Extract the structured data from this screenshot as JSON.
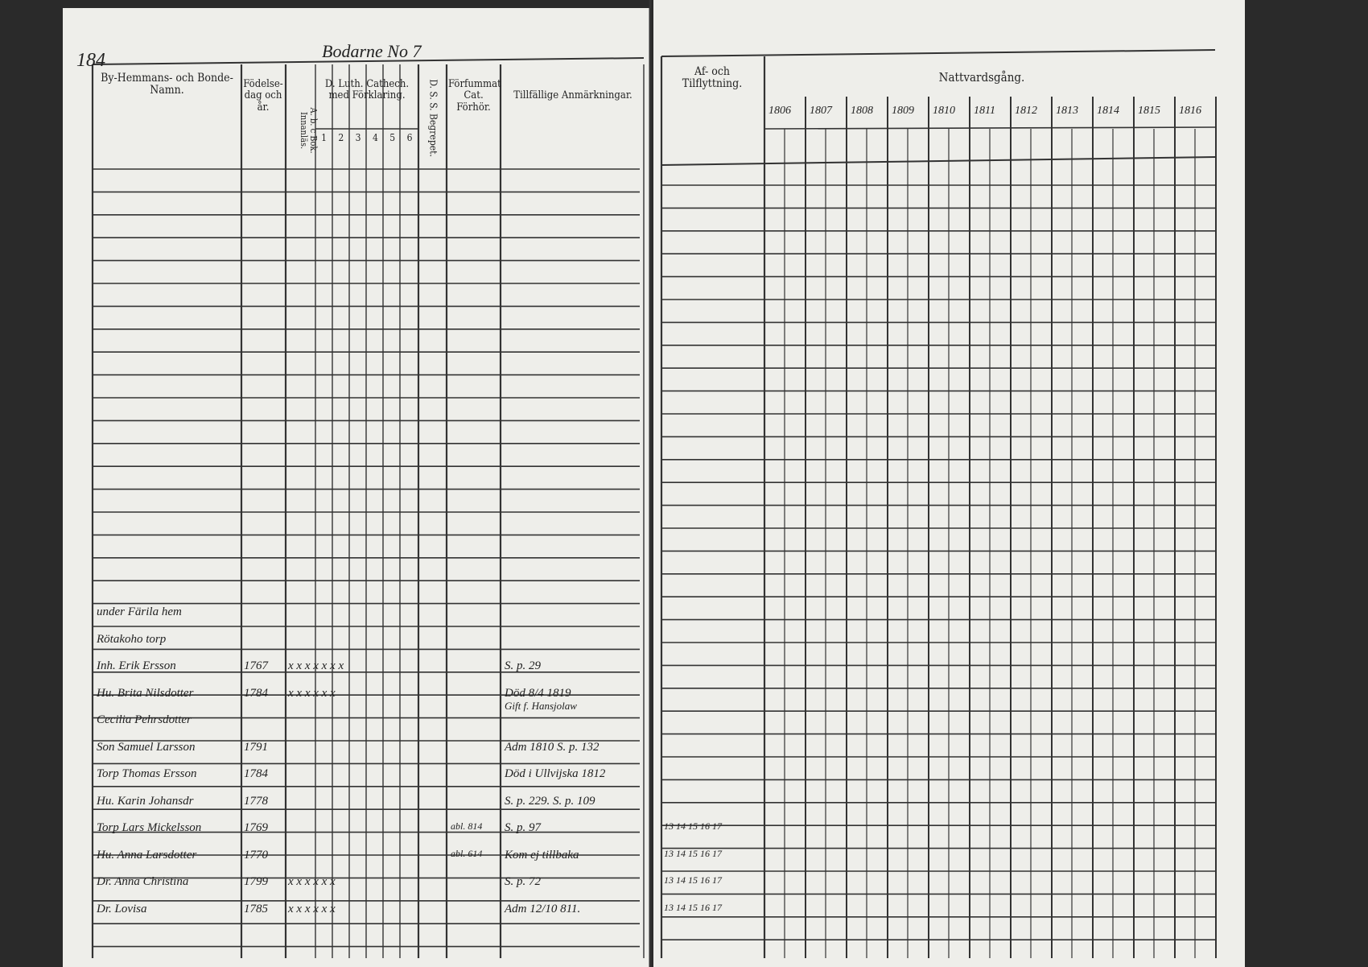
{
  "left_page": {
    "page_number": "184",
    "farm": "Bodarne No 7",
    "headers": {
      "name": "By-Hemmans- och Bonde-Namn.",
      "birth": "Födelse-dag och år.",
      "abc": "A. b. c Bok. Innanläs.",
      "catechism": "D. Luth. Cathech. med Förklaring.",
      "catechism_parts": [
        "1",
        "2",
        "3",
        "4",
        "5",
        "6"
      ],
      "dss": "D. S. S. Begrepet.",
      "missed": "Förfummat Cat. Förhör.",
      "notes": "Tillfällige Anmärkningar."
    }
  },
  "right_page": {
    "headers": {
      "moves": "Af- och Tilflyttning.",
      "communion": "Nattvardsgång."
    },
    "years": [
      "1806",
      "1807",
      "1808",
      "1809",
      "1810",
      "1811",
      "1812",
      "1813",
      "1814",
      "1815",
      "1816"
    ]
  },
  "entries": [
    {
      "name": "under Färila hem"
    },
    {
      "name": "Rötakoho torp"
    },
    {
      "name": "Inh. Erik Ersson",
      "birth": "1767",
      "knowledge": "x x x x x x x",
      "note": "S. p. 29"
    },
    {
      "name": "Hu. Brita Nilsdotter",
      "birth": "1784",
      "knowledge": "x x x x x x",
      "note": "Död 8/4 1819",
      "note2": "Gift f. Hansjolaw"
    },
    {
      "name": "Cecilia Pehrsdotter"
    },
    {
      "name": "Son Samuel Larsson",
      "birth": "1791",
      "note": "Adm 1810 S. p. 132"
    },
    {
      "name": "Torp Thomas Ersson",
      "birth": "1784",
      "note": "Död i Ullvijska 1812"
    },
    {
      "name": "Hu. Karin Johansdr",
      "birth": "1778",
      "note": "S. p. 229. S. p. 109"
    },
    {
      "name": "Torp Lars Mickelsson",
      "birth": "1769",
      "missed": "abl. 814",
      "note": "S. p. 97",
      "moves": "13 14 15 16 17"
    },
    {
      "name": "Hu. Anna Larsdotter",
      "birth": "1770",
      "missed": "abl. 614",
      "note": "Kom ej tillbaka",
      "moves": "13 14 15 16 17"
    },
    {
      "name": "Dr. Anna Christina",
      "birth": "1799",
      "knowledge": "x x x x x x",
      "note": "S. p. 72",
      "moves": "13 14 15 16 17"
    },
    {
      "name": "Dr. Lovisa",
      "birth": "1785",
      "knowledge": "x x x x x x",
      "note": "Adm 12/10 811.",
      "moves": "13 14 15 16 17"
    }
  ]
}
